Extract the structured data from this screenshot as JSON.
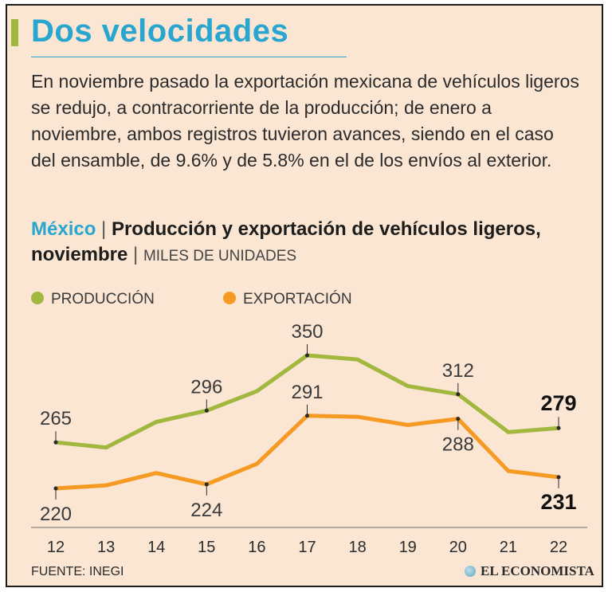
{
  "header": {
    "title": "Dos velocidades",
    "description": "En noviembre pasado la exportación mexicana de vehículos ligeros se redujo, a contracorriente de la producción; de enero a noviembre, ambos registros tuvieron avances, siendo en el caso del ensamble, de 9.6% y de 5.8% en el de los envíos al exterior."
  },
  "subtitle": {
    "country": "México",
    "separator": "|",
    "main": "Producción y exportación de vehículos ligeros, noviembre",
    "units": "MILES DE UNIDADES"
  },
  "footer": {
    "source": "FUENTE: INEGI",
    "logo_text": "EL ECONOMISTA"
  },
  "colors": {
    "title_blue": "#29a6cf",
    "produccion": "#a2b73e",
    "exportacion": "#f59a23",
    "background": "#fbe5d3"
  },
  "chart_data": {
    "type": "line",
    "title": "Producción y exportación de vehículos ligeros, noviembre",
    "xlabel": "",
    "ylabel": "Miles de unidades",
    "categories": [
      "12",
      "13",
      "14",
      "15",
      "16",
      "17",
      "18",
      "19",
      "20",
      "21",
      "22"
    ],
    "ylim": [
      180,
      370
    ],
    "grid": false,
    "legend": "top-left",
    "series": [
      {
        "name": "PRODUCCIÓN",
        "color": "#a2b73e",
        "values": [
          265,
          260,
          285,
          296,
          315,
          350,
          346,
          320,
          312,
          275,
          279
        ],
        "labeled_indices": [
          0,
          3,
          5,
          8,
          10
        ],
        "label_position": [
          "above",
          "above",
          "above",
          "above",
          "above"
        ],
        "emphasized_index": 10
      },
      {
        "name": "EXPORTACIÓN",
        "color": "#f59a23",
        "values": [
          220,
          223,
          235,
          224,
          244,
          291,
          290,
          282,
          288,
          237,
          231
        ],
        "labeled_indices": [
          0,
          3,
          5,
          8,
          10
        ],
        "label_position": [
          "below",
          "below",
          "above",
          "below",
          "below"
        ],
        "emphasized_index": 10
      }
    ]
  }
}
